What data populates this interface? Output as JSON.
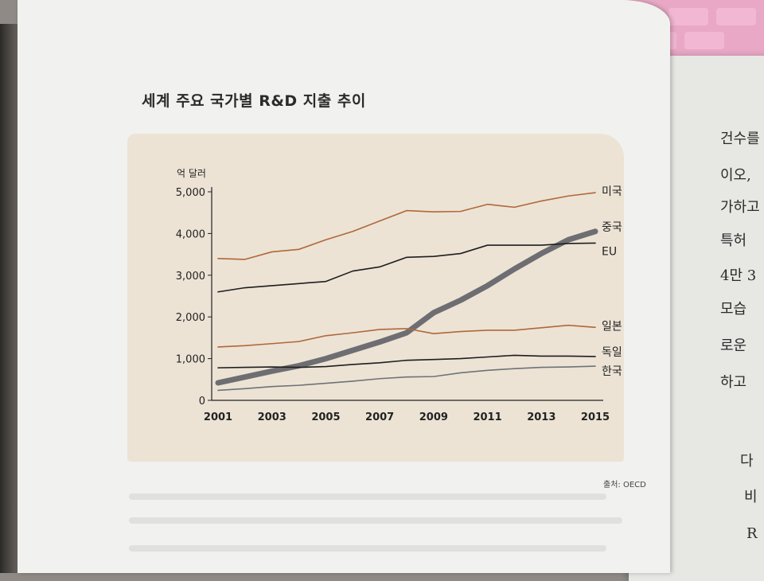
{
  "chart_data": {
    "type": "line",
    "title": "세계 주요 국가별 R&D 지출 추이",
    "ylabel": "억 달러",
    "xlabel": "",
    "x": [
      2001,
      2002,
      2003,
      2004,
      2005,
      2006,
      2007,
      2008,
      2009,
      2010,
      2011,
      2012,
      2013,
      2014,
      2015
    ],
    "x_ticks": [
      "2001",
      "2003",
      "2005",
      "2007",
      "2009",
      "2011",
      "2013",
      "2015"
    ],
    "y_ticks": [
      "0",
      "1,000",
      "2,000",
      "3,000",
      "4,000",
      "5,000"
    ],
    "ylim": [
      0,
      5000
    ],
    "xlim": [
      2001,
      2015
    ],
    "grid": false,
    "legend": "labels at line ends (right)",
    "series": [
      {
        "name": "미국",
        "color": "#b0683a",
        "width": 1.6,
        "values": [
          3400,
          3380,
          3560,
          3620,
          3850,
          4050,
          4300,
          4550,
          4520,
          4530,
          4700,
          4630,
          4780,
          4900,
          4980
        ]
      },
      {
        "name": "중국",
        "color": "#6e6e72",
        "width": 7,
        "values": [
          420,
          560,
          700,
          830,
          1000,
          1200,
          1400,
          1620,
          2100,
          2400,
          2750,
          3150,
          3520,
          3850,
          4050
        ]
      },
      {
        "name": "EU",
        "color": "#1e1e1e",
        "width": 1.6,
        "values": [
          2600,
          2700,
          2750,
          2800,
          2850,
          3100,
          3200,
          3430,
          3450,
          3520,
          3720,
          3720,
          3720,
          3760,
          3770
        ]
      },
      {
        "name": "일본",
        "color": "#b0683a",
        "width": 1.6,
        "values": [
          1280,
          1310,
          1360,
          1410,
          1550,
          1620,
          1700,
          1720,
          1600,
          1650,
          1680,
          1680,
          1740,
          1800,
          1750
        ]
      },
      {
        "name": "독일",
        "color": "#1e1e1e",
        "width": 1.6,
        "values": [
          780,
          790,
          800,
          790,
          810,
          860,
          900,
          960,
          980,
          1000,
          1040,
          1080,
          1060,
          1060,
          1050
        ]
      },
      {
        "name": "한국",
        "color": "#6e7278",
        "width": 1.6,
        "values": [
          240,
          280,
          330,
          360,
          410,
          460,
          520,
          560,
          570,
          660,
          720,
          760,
          790,
          800,
          820
        ]
      }
    ]
  },
  "source": "출처: OECD",
  "right_page": [
    "건수를",
    "이오, ",
    "가하고",
    "특허",
    "4만 3",
    "모습",
    "로운",
    "하고",
    "다",
    "비",
    "R"
  ]
}
